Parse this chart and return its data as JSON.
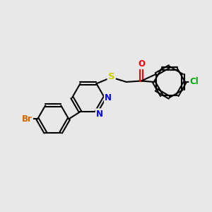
{
  "bg_color": "#e8e8e8",
  "bond_color": "#000000",
  "bond_width": 1.5,
  "atom_colors": {
    "N": "#0000ff",
    "S": "#cccc00",
    "O": "#ff0000",
    "Br": "#cc6600",
    "Cl": "#00aa00",
    "C": "#000000"
  },
  "font_size": 8.5,
  "xlim": [
    0,
    10
  ],
  "ylim": [
    0,
    10
  ]
}
